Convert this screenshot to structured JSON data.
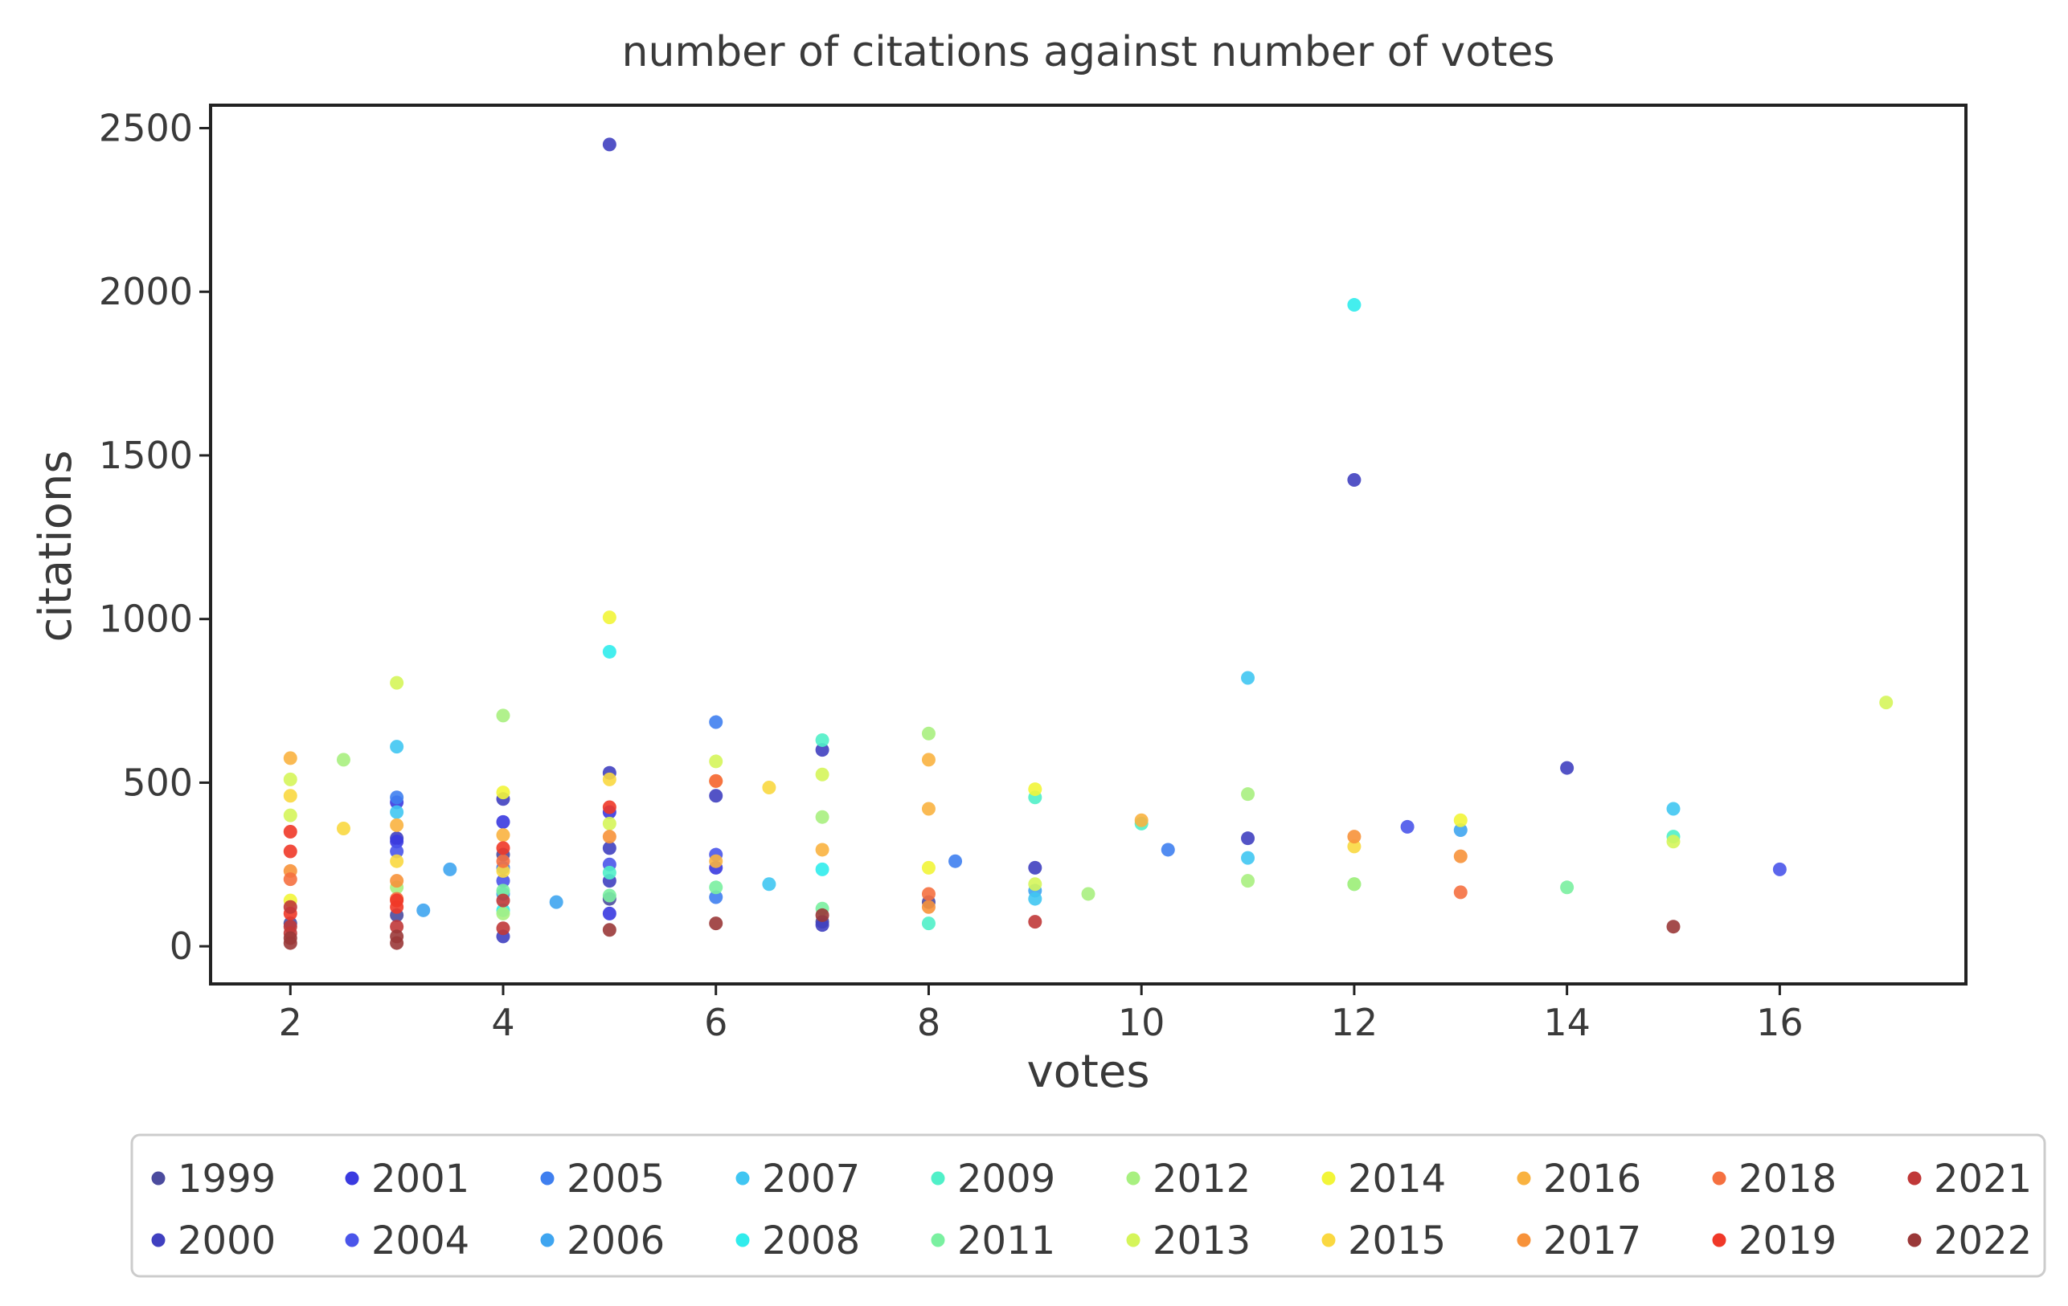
{
  "chart_data": {
    "type": "scatter",
    "title": "number of citations against number of votes",
    "xlabel": "votes",
    "ylabel": "citations",
    "xlim": [
      1.25,
      17.75
    ],
    "ylim": [
      -115,
      2570
    ],
    "xticks": [
      "2",
      "4",
      "6",
      "8",
      "10",
      "12",
      "14",
      "16"
    ],
    "yticks": [
      "0",
      "500",
      "1000",
      "1500",
      "2000",
      "2500"
    ],
    "grid": false,
    "legend_position": "bottom",
    "series": [
      {
        "name": "1999",
        "color": "#4b4b9e",
        "points": [
          [
            2,
            70
          ],
          [
            3,
            95
          ],
          [
            4,
            280
          ],
          [
            5,
            145
          ],
          [
            7,
            75
          ],
          [
            8,
            135
          ]
        ]
      },
      {
        "name": "2000",
        "color": "#4040c0",
        "points": [
          [
            5,
            2450
          ],
          [
            12,
            1425
          ],
          [
            7,
            600
          ],
          [
            5,
            530
          ],
          [
            14,
            545
          ],
          [
            6,
            460
          ],
          [
            4,
            450
          ],
          [
            11,
            330
          ],
          [
            9,
            240
          ],
          [
            3,
            330
          ],
          [
            4,
            30
          ],
          [
            5,
            300
          ],
          [
            7,
            65
          ],
          [
            5,
            200
          ]
        ]
      },
      {
        "name": "2001",
        "color": "#3a3ae0",
        "points": [
          [
            3,
            320
          ],
          [
            3,
            440
          ],
          [
            4,
            380
          ],
          [
            5,
            100
          ],
          [
            5,
            410
          ],
          [
            6,
            240
          ]
        ]
      },
      {
        "name": "2004",
        "color": "#4a55ea",
        "points": [
          [
            6,
            280
          ],
          [
            12.5,
            365
          ],
          [
            16,
            235
          ],
          [
            3,
            290
          ],
          [
            4,
            200
          ],
          [
            5,
            250
          ]
        ]
      },
      {
        "name": "2005",
        "color": "#3f7fef",
        "points": [
          [
            6,
            685
          ],
          [
            3,
            455
          ],
          [
            8.25,
            260
          ],
          [
            10.25,
            295
          ],
          [
            4,
            240
          ],
          [
            6,
            150
          ]
        ]
      },
      {
        "name": "2006",
        "color": "#3fa5f0",
        "points": [
          [
            3.5,
            235
          ],
          [
            3.25,
            110
          ],
          [
            4.5,
            135
          ],
          [
            13,
            355
          ],
          [
            4,
            160
          ],
          [
            9,
            170
          ]
        ]
      },
      {
        "name": "2007",
        "color": "#40c6f2",
        "points": [
          [
            3,
            610
          ],
          [
            11,
            820
          ],
          [
            15,
            420
          ],
          [
            6.5,
            190
          ],
          [
            3,
            410
          ],
          [
            11,
            270
          ],
          [
            9,
            145
          ]
        ]
      },
      {
        "name": "2008",
        "color": "#30ecec",
        "points": [
          [
            12,
            1960
          ],
          [
            5,
            900
          ],
          [
            7,
            235
          ],
          [
            4,
            110
          ]
        ]
      },
      {
        "name": "2009",
        "color": "#50f0c8",
        "points": [
          [
            10,
            375
          ],
          [
            15,
            335
          ],
          [
            8,
            70
          ],
          [
            5,
            225
          ],
          [
            9,
            455
          ],
          [
            7,
            630
          ]
        ]
      },
      {
        "name": "2011",
        "color": "#7af0a0",
        "points": [
          [
            14,
            180
          ],
          [
            4,
            170
          ],
          [
            5,
            155
          ],
          [
            6,
            180
          ],
          [
            12,
            190
          ],
          [
            7,
            115
          ]
        ]
      },
      {
        "name": "2012",
        "color": "#a8f080",
        "points": [
          [
            4,
            705
          ],
          [
            2.5,
            570
          ],
          [
            11,
            465
          ],
          [
            12,
            190
          ],
          [
            9.5,
            160
          ],
          [
            8,
            650
          ],
          [
            7,
            395
          ],
          [
            4,
            100
          ],
          [
            3,
            180
          ],
          [
            11,
            200
          ]
        ]
      },
      {
        "name": "2013",
        "color": "#d5f55a",
        "points": [
          [
            3,
            805
          ],
          [
            17,
            745
          ],
          [
            2,
            510
          ],
          [
            15,
            320
          ],
          [
            7,
            525
          ],
          [
            2,
            400
          ],
          [
            6,
            565
          ],
          [
            5,
            375
          ],
          [
            9,
            190
          ]
        ]
      },
      {
        "name": "2014",
        "color": "#f2f538",
        "points": [
          [
            5,
            1005
          ],
          [
            9,
            480
          ],
          [
            8,
            240
          ],
          [
            13,
            385
          ],
          [
            4,
            470
          ],
          [
            2,
            140
          ]
        ]
      },
      {
        "name": "2015",
        "color": "#fad840",
        "points": [
          [
            6.5,
            485
          ],
          [
            2,
            460
          ],
          [
            12,
            305
          ],
          [
            5,
            510
          ],
          [
            3,
            260
          ],
          [
            4,
            230
          ],
          [
            2.5,
            360
          ]
        ]
      },
      {
        "name": "2016",
        "color": "#f9b240",
        "points": [
          [
            2,
            575
          ],
          [
            8,
            570
          ],
          [
            8,
            420
          ],
          [
            7,
            295
          ],
          [
            10,
            385
          ],
          [
            4,
            340
          ],
          [
            6,
            260
          ],
          [
            3,
            370
          ]
        ]
      },
      {
        "name": "2017",
        "color": "#f7923a",
        "points": [
          [
            12,
            335
          ],
          [
            13,
            275
          ],
          [
            8,
            120
          ],
          [
            5,
            335
          ],
          [
            3,
            200
          ],
          [
            2,
            230
          ],
          [
            6,
            505
          ]
        ]
      },
      {
        "name": "2018",
        "color": "#f57040",
        "points": [
          [
            13,
            165
          ],
          [
            6,
            505
          ],
          [
            2,
            205
          ],
          [
            8,
            160
          ],
          [
            4,
            260
          ],
          [
            3,
            145
          ]
        ]
      },
      {
        "name": "2019",
        "color": "#f03828",
        "points": [
          [
            5,
            425
          ],
          [
            2,
            350
          ],
          [
            3,
            140
          ],
          [
            2,
            290
          ],
          [
            3,
            120
          ],
          [
            2,
            100
          ],
          [
            4,
            300
          ]
        ]
      },
      {
        "name": "2021",
        "color": "#c03838",
        "points": [
          [
            9,
            75
          ],
          [
            2,
            60
          ],
          [
            2,
            40
          ],
          [
            4,
            140
          ],
          [
            3,
            60
          ],
          [
            2,
            120
          ],
          [
            4,
            55
          ]
        ]
      },
      {
        "name": "2022",
        "color": "#9a3838",
        "points": [
          [
            15,
            60
          ],
          [
            6,
            70
          ],
          [
            5,
            50
          ],
          [
            7,
            95
          ],
          [
            3,
            10
          ],
          [
            2,
            10
          ],
          [
            2,
            25
          ],
          [
            3,
            30
          ]
        ]
      }
    ]
  }
}
